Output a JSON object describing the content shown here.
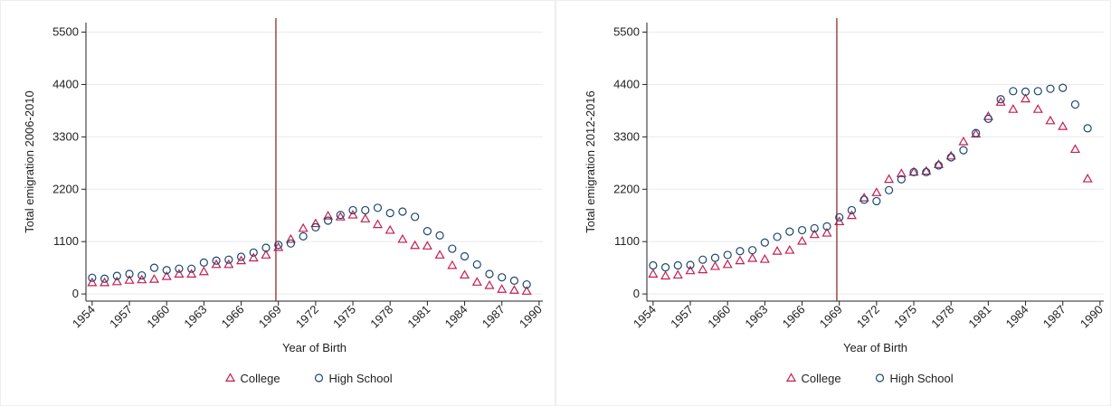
{
  "chart_data": [
    {
      "type": "scatter",
      "y_label": "Total emigration 2006-2010",
      "x_label": "Year of Birth",
      "x": [
        1954,
        1955,
        1956,
        1957,
        1958,
        1959,
        1960,
        1961,
        1962,
        1963,
        1964,
        1965,
        1966,
        1967,
        1968,
        1969,
        1970,
        1971,
        1972,
        1973,
        1974,
        1975,
        1976,
        1977,
        1978,
        1979,
        1980,
        1981,
        1982,
        1983,
        1984,
        1985,
        1986,
        1987,
        1988,
        1989
      ],
      "series": [
        {
          "name": "College",
          "color": "#c41e50",
          "marker": "triangle",
          "values": [
            240,
            240,
            260,
            290,
            300,
            310,
            370,
            420,
            420,
            470,
            620,
            620,
            700,
            760,
            820,
            980,
            1150,
            1380,
            1480,
            1640,
            1620,
            1660,
            1580,
            1460,
            1340,
            1150,
            1020,
            1010,
            820,
            600,
            400,
            250,
            180,
            100,
            80,
            60
          ]
        },
        {
          "name": "High School",
          "color": "#1a476f",
          "marker": "circle",
          "values": [
            340,
            320,
            380,
            420,
            390,
            550,
            500,
            530,
            530,
            660,
            700,
            720,
            780,
            870,
            970,
            1030,
            1060,
            1210,
            1400,
            1540,
            1660,
            1760,
            1760,
            1810,
            1700,
            1730,
            1620,
            1320,
            1230,
            950,
            790,
            620,
            420,
            350,
            280,
            200
          ]
        }
      ],
      "vline": 1968.8,
      "vline_color": "#8b1a1a",
      "xlim": [
        1953.5,
        1990.3
      ],
      "xticks": [
        1954,
        1957,
        1960,
        1963,
        1966,
        1969,
        1972,
        1975,
        1978,
        1981,
        1984,
        1987,
        1990
      ],
      "ylim": [
        -150,
        5700
      ],
      "yticks": [
        0,
        1100,
        2200,
        3300,
        4400,
        5500
      ],
      "grid": true
    },
    {
      "type": "scatter",
      "y_label": "Total emigration 2012-2016",
      "x_label": "Year of Birth",
      "x": [
        1954,
        1955,
        1956,
        1957,
        1958,
        1959,
        1960,
        1961,
        1962,
        1963,
        1964,
        1965,
        1966,
        1967,
        1968,
        1969,
        1970,
        1971,
        1972,
        1973,
        1974,
        1975,
        1976,
        1977,
        1978,
        1979,
        1980,
        1981,
        1982,
        1983,
        1984,
        1985,
        1986,
        1987,
        1988,
        1989
      ],
      "series": [
        {
          "name": "College",
          "color": "#c41e50",
          "marker": "triangle",
          "values": [
            420,
            380,
            400,
            490,
            510,
            580,
            620,
            700,
            750,
            730,
            900,
            920,
            1110,
            1250,
            1280,
            1520,
            1650,
            2020,
            2130,
            2410,
            2530,
            2560,
            2580,
            2720,
            2900,
            3200,
            3360,
            3730,
            4030,
            3880,
            4100,
            3880,
            3640,
            3520,
            3040,
            2420
          ]
        },
        {
          "name": "High School",
          "color": "#1a476f",
          "marker": "circle",
          "values": [
            600,
            560,
            600,
            610,
            720,
            760,
            820,
            900,
            920,
            1080,
            1200,
            1310,
            1340,
            1380,
            1420,
            1610,
            1760,
            1980,
            1950,
            2180,
            2410,
            2560,
            2560,
            2700,
            2870,
            3020,
            3380,
            3680,
            4090,
            4260,
            4250,
            4260,
            4310,
            4330,
            3980,
            3480
          ]
        }
      ],
      "vline": 1968.8,
      "vline_color": "#8b1a1a",
      "xlim": [
        1953.5,
        1990.3
      ],
      "xticks": [
        1954,
        1957,
        1960,
        1963,
        1966,
        1969,
        1972,
        1975,
        1978,
        1981,
        1984,
        1987,
        1990
      ],
      "ylim": [
        -150,
        5700
      ],
      "yticks": [
        0,
        1100,
        2200,
        3300,
        4400,
        5500
      ],
      "grid": true
    }
  ]
}
